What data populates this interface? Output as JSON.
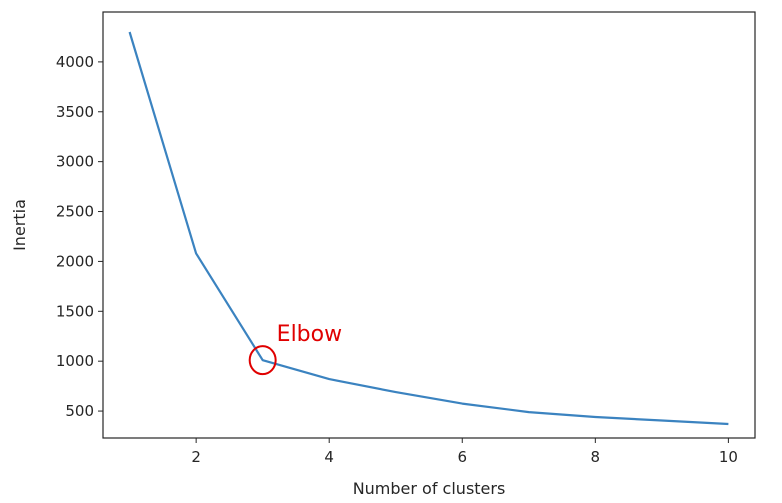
{
  "chart_data": {
    "type": "line",
    "title": "",
    "xlabel": "Number of clusters",
    "ylabel": "Inertia",
    "x": [
      1,
      2,
      3,
      4,
      5,
      6,
      7,
      8,
      9,
      10
    ],
    "series": [
      {
        "values": [
          4300,
          2080,
          1010,
          820,
          690,
          575,
          490,
          440,
          405,
          370
        ]
      }
    ],
    "xlim": [
      0.6,
      10.4
    ],
    "ylim": [
      230,
      4500
    ],
    "xticks": [
      2,
      4,
      6,
      8,
      10
    ],
    "yticks": [
      500,
      1000,
      1500,
      2000,
      2500,
      3000,
      3500,
      4000
    ],
    "grid": false,
    "colors": {
      "line": "#3b83c0",
      "annotation": "#e00000",
      "frame": "#262626"
    },
    "annotation": {
      "text": "Elbow",
      "x": 3,
      "y": 1010
    }
  }
}
